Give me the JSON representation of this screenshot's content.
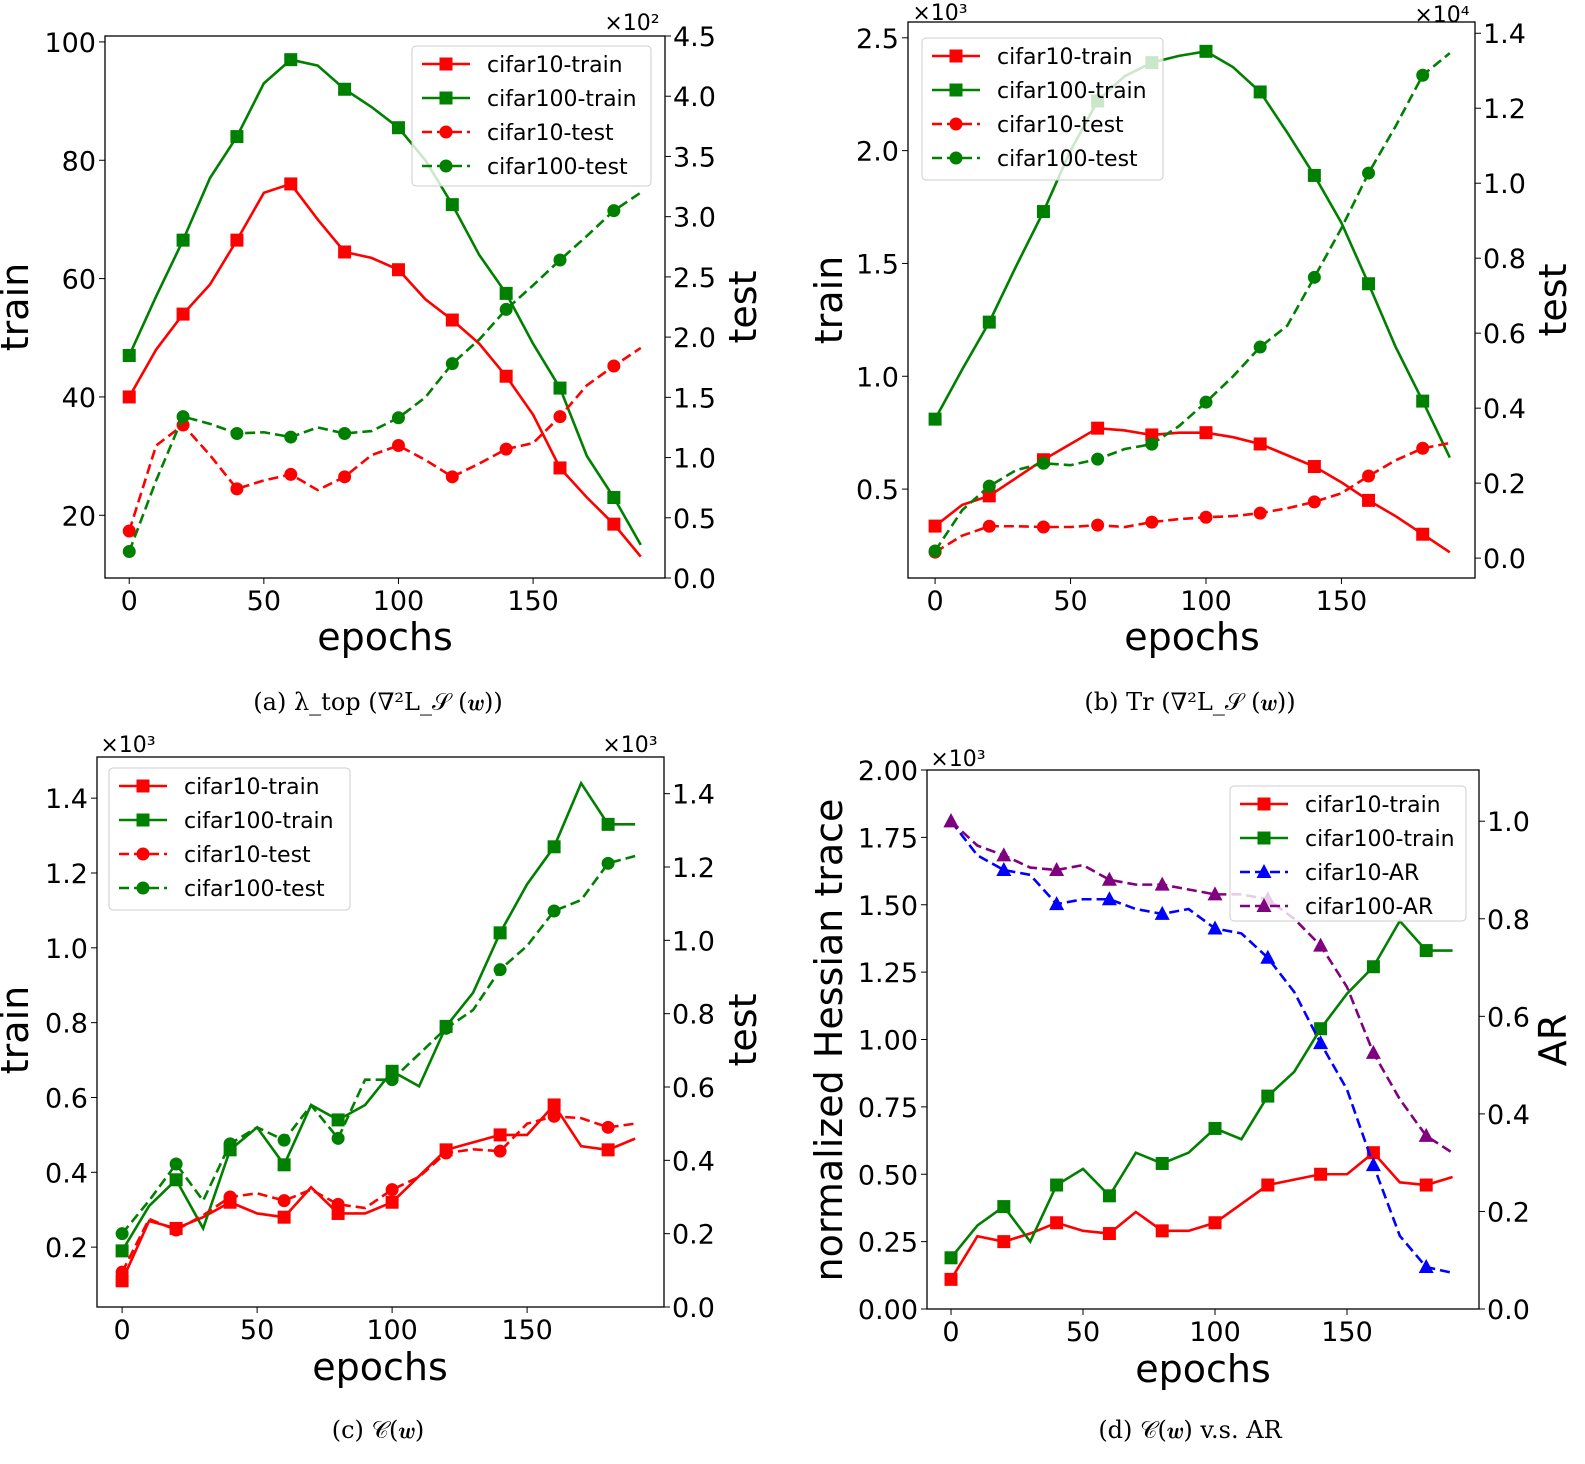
{
  "chart_data": [
    {
      "type": "line",
      "caption": "(a) λ_top (∇²L_𝒮 (𝒘))",
      "xlabel": "epochs",
      "ylabel": "train",
      "ylabel_right": "test",
      "left_multiplier": "",
      "right_multiplier": "×10²",
      "xlim": [
        -9,
        199
      ],
      "ylim": [
        9.4,
        101
      ],
      "ylim_right": [
        0,
        4.5
      ],
      "xticks": [
        0,
        50,
        100,
        150
      ],
      "yticks": [
        "20",
        "40",
        "60",
        "80",
        "100"
      ],
      "yticks_right": [
        "0.0",
        "0.5",
        "1.0",
        "1.5",
        "2.0",
        "2.5",
        "3.0",
        "3.5",
        "4.0",
        "4.5"
      ],
      "legend_position": "upper-right",
      "x": [
        0,
        10,
        20,
        30,
        40,
        50,
        60,
        70,
        80,
        90,
        100,
        110,
        120,
        130,
        140,
        150,
        160,
        170,
        180,
        190
      ],
      "series": [
        {
          "name": "cifar10-train",
          "axis": "left",
          "color": "#ff0000",
          "style": "solid",
          "marker": "square",
          "values": [
            40,
            48,
            54,
            59,
            66.5,
            74.5,
            76,
            70,
            64.5,
            63.5,
            61.5,
            56.5,
            53,
            49,
            43.5,
            37,
            28,
            23,
            18.5,
            13
          ]
        },
        {
          "name": "cifar100-train",
          "axis": "left",
          "color": "#008000",
          "style": "solid",
          "marker": "square",
          "values": [
            47,
            57,
            66.5,
            77,
            84,
            93,
            97,
            96,
            92,
            89,
            85.5,
            80,
            72.5,
            64,
            57.5,
            49,
            41.5,
            30,
            23,
            15
          ]
        },
        {
          "name": "cifar10-test",
          "axis": "right",
          "color": "#ff0000",
          "style": "dashed",
          "marker": "circle",
          "values": [
            0.39,
            1.1,
            1.27,
            1.02,
            0.74,
            0.81,
            0.86,
            0.73,
            0.84,
            1.02,
            1.1,
            0.98,
            0.84,
            0.95,
            1.07,
            1.12,
            1.34,
            1.6,
            1.76,
            1.91
          ]
        },
        {
          "name": "cifar100-test",
          "axis": "right",
          "color": "#008000",
          "style": "dashed",
          "marker": "circle",
          "values": [
            0.22,
            0.81,
            1.34,
            1.28,
            1.2,
            1.21,
            1.17,
            1.25,
            1.2,
            1.22,
            1.33,
            1.5,
            1.78,
            1.98,
            2.23,
            2.43,
            2.64,
            2.84,
            3.05,
            3.2
          ]
        }
      ]
    },
    {
      "type": "line",
      "caption": "(b) Tr (∇²L_𝒮 (𝒘))",
      "xlabel": "epochs",
      "ylabel": "train",
      "ylabel_right": "test",
      "left_multiplier": "×10³",
      "right_multiplier": "×10⁴",
      "xlim": [
        -10,
        199.3
      ],
      "ylim": [
        0.106,
        2.57
      ],
      "ylim_right": [
        -0.053,
        1.43
      ],
      "xticks": [
        0,
        50,
        100,
        150
      ],
      "yticks": [
        "0.5",
        "1.0",
        "1.5",
        "2.0",
        "2.5"
      ],
      "yticks_right": [
        "0.0",
        "0.2",
        "0.4",
        "0.6",
        "0.8",
        "1.0",
        "1.2",
        "1.4"
      ],
      "legend_position": "upper-left",
      "x": [
        0,
        10,
        20,
        30,
        40,
        50,
        60,
        70,
        80,
        90,
        100,
        110,
        120,
        130,
        140,
        150,
        160,
        170,
        180,
        190
      ],
      "series": [
        {
          "name": "cifar10-train",
          "axis": "left",
          "color": "#ff0000",
          "style": "solid",
          "marker": "square",
          "values": [
            0.336,
            0.43,
            0.47,
            0.55,
            0.63,
            0.7,
            0.77,
            0.76,
            0.74,
            0.75,
            0.75,
            0.73,
            0.7,
            0.65,
            0.6,
            0.53,
            0.45,
            0.38,
            0.3,
            0.22
          ]
        },
        {
          "name": "cifar100-train",
          "axis": "left",
          "color": "#008000",
          "style": "solid",
          "marker": "square",
          "values": [
            0.81,
            1.03,
            1.24,
            1.49,
            1.73,
            2.0,
            2.22,
            2.33,
            2.39,
            2.42,
            2.44,
            2.37,
            2.26,
            2.08,
            1.89,
            1.68,
            1.41,
            1.13,
            0.89,
            0.64
          ]
        },
        {
          "name": "cifar10-test",
          "axis": "right",
          "color": "#ff0000",
          "style": "dashed",
          "marker": "circle",
          "values": [
            0.016,
            0.06,
            0.085,
            0.085,
            0.083,
            0.083,
            0.088,
            0.083,
            0.096,
            0.104,
            0.109,
            0.112,
            0.12,
            0.133,
            0.15,
            0.173,
            0.219,
            0.261,
            0.293,
            0.307
          ]
        },
        {
          "name": "cifar100-test",
          "axis": "right",
          "color": "#008000",
          "style": "dashed",
          "marker": "circle",
          "values": [
            0.019,
            0.128,
            0.192,
            0.235,
            0.253,
            0.248,
            0.264,
            0.291,
            0.304,
            0.352,
            0.416,
            0.485,
            0.563,
            0.62,
            0.749,
            0.88,
            1.027,
            1.152,
            1.288,
            1.347
          ]
        }
      ]
    },
    {
      "type": "line",
      "caption": "(c) 𝒞(𝒘)",
      "xlabel": "epochs",
      "ylabel": "train",
      "ylabel_right": "test",
      "left_multiplier": "×10³",
      "right_multiplier": "×10³",
      "xlim": [
        -9.3,
        200.7
      ],
      "ylim": [
        0.04,
        1.51
      ],
      "ylim_right": [
        0,
        1.5
      ],
      "xticks": [
        0,
        50,
        100,
        150
      ],
      "yticks": [
        "0.2",
        "0.4",
        "0.6",
        "0.8",
        "1.0",
        "1.2",
        "1.4"
      ],
      "yticks_right": [
        "0.0",
        "0.2",
        "0.4",
        "0.6",
        "0.8",
        "1.0",
        "1.2",
        "1.4"
      ],
      "legend_position": "upper-left",
      "x": [
        0,
        10,
        20,
        30,
        40,
        50,
        60,
        70,
        80,
        90,
        100,
        110,
        120,
        130,
        140,
        150,
        160,
        170,
        180,
        190
      ],
      "series": [
        {
          "name": "cifar10-train",
          "axis": "left",
          "color": "#ff0000",
          "style": "solid",
          "marker": "square",
          "values": [
            0.11,
            0.27,
            0.25,
            0.28,
            0.32,
            0.29,
            0.28,
            0.36,
            0.29,
            0.29,
            0.32,
            0.39,
            0.46,
            0.48,
            0.5,
            0.5,
            0.58,
            0.47,
            0.46,
            0.49
          ]
        },
        {
          "name": "cifar100-train",
          "axis": "left",
          "color": "#008000",
          "style": "solid",
          "marker": "square",
          "values": [
            0.19,
            0.31,
            0.38,
            0.25,
            0.46,
            0.52,
            0.42,
            0.58,
            0.54,
            0.58,
            0.67,
            0.63,
            0.79,
            0.88,
            1.04,
            1.17,
            1.27,
            1.44,
            1.33,
            1.33
          ]
        },
        {
          "name": "cifar10-test",
          "axis": "right",
          "color": "#ff0000",
          "style": "dashed",
          "marker": "circle",
          "values": [
            0.095,
            0.24,
            0.21,
            0.25,
            0.3,
            0.31,
            0.29,
            0.32,
            0.28,
            0.27,
            0.32,
            0.355,
            0.42,
            0.43,
            0.425,
            0.5,
            0.52,
            0.515,
            0.49,
            0.5
          ]
        },
        {
          "name": "cifar100-test",
          "axis": "right",
          "color": "#008000",
          "style": "dashed",
          "marker": "circle",
          "values": [
            0.2,
            0.29,
            0.39,
            0.29,
            0.445,
            0.49,
            0.455,
            0.55,
            0.46,
            0.62,
            0.62,
            0.69,
            0.76,
            0.81,
            0.92,
            0.985,
            1.08,
            1.11,
            1.21,
            1.23
          ]
        }
      ]
    },
    {
      "type": "line",
      "caption": "(d) 𝒞(𝒘) v.s. AR",
      "xlabel": "epochs",
      "ylabel": "normalized Hessian trace",
      "ylabel_right": "AR",
      "left_multiplier": "×10³",
      "right_multiplier": "",
      "xlim": [
        -9.1,
        200
      ],
      "ylim": [
        0,
        2.0
      ],
      "ylim_right": [
        0,
        1.105
      ],
      "xticks": [
        0,
        50,
        100,
        150
      ],
      "yticks": [
        "0.00",
        "0.25",
        "0.50",
        "0.75",
        "1.00",
        "1.25",
        "1.50",
        "1.75",
        "2.00"
      ],
      "yticks_right": [
        "0.0",
        "0.2",
        "0.4",
        "0.6",
        "0.8",
        "1.0"
      ],
      "legend_position": "upper-right",
      "x": [
        0,
        10,
        20,
        30,
        40,
        50,
        60,
        70,
        80,
        90,
        100,
        110,
        120,
        130,
        140,
        150,
        160,
        170,
        180,
        190
      ],
      "series": [
        {
          "name": "cifar10-train",
          "axis": "left",
          "color": "#ff0000",
          "style": "solid",
          "marker": "square",
          "values": [
            0.11,
            0.27,
            0.25,
            0.28,
            0.32,
            0.29,
            0.28,
            0.36,
            0.29,
            0.29,
            0.32,
            0.39,
            0.46,
            0.48,
            0.5,
            0.5,
            0.58,
            0.47,
            0.46,
            0.49
          ]
        },
        {
          "name": "cifar100-train",
          "axis": "left",
          "color": "#008000",
          "style": "solid",
          "marker": "square",
          "values": [
            0.19,
            0.31,
            0.38,
            0.25,
            0.46,
            0.52,
            0.42,
            0.58,
            0.54,
            0.58,
            0.67,
            0.63,
            0.79,
            0.88,
            1.04,
            1.17,
            1.27,
            1.44,
            1.33,
            1.33
          ]
        },
        {
          "name": "cifar10-AR",
          "axis": "right",
          "color": "#0000ff",
          "style": "dashed",
          "marker": "triangle",
          "values": [
            1.0,
            0.93,
            0.9,
            0.89,
            0.83,
            0.84,
            0.84,
            0.82,
            0.81,
            0.82,
            0.78,
            0.77,
            0.72,
            0.65,
            0.545,
            0.45,
            0.295,
            0.15,
            0.086,
            0.074
          ]
        },
        {
          "name": "cifar100-AR",
          "axis": "right",
          "color": "#800080",
          "style": "dashed",
          "marker": "triangle",
          "values": [
            1.0,
            0.95,
            0.93,
            0.905,
            0.9,
            0.91,
            0.88,
            0.87,
            0.87,
            0.86,
            0.85,
            0.85,
            0.84,
            0.8,
            0.745,
            0.66,
            0.525,
            0.43,
            0.355,
            0.32
          ]
        }
      ]
    }
  ]
}
